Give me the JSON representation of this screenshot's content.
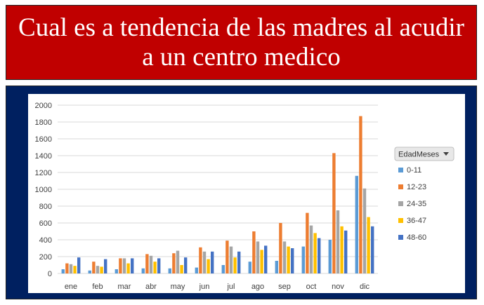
{
  "banner": {
    "title": "Cual es a tendencia de las madres al acudir a un centro medico"
  },
  "colors": {
    "banner_bg": "#c00000",
    "frame_bg": "#002060",
    "gridline": "#d9d9d9"
  },
  "chart_data": {
    "type": "bar",
    "title": "",
    "xlabel": "",
    "ylabel": "",
    "ylim": [
      0,
      2000
    ],
    "yticks": [
      0,
      200,
      400,
      600,
      800,
      1000,
      1200,
      1400,
      1600,
      1800,
      2000
    ],
    "grid": true,
    "legend_title": "EdadMeses",
    "legend_position": "right",
    "categories": [
      "ene",
      "feb",
      "mar",
      "abr",
      "may",
      "jun",
      "jul",
      "ago",
      "sep",
      "oct",
      "nov",
      "dic"
    ],
    "series": [
      {
        "name": "0-11",
        "color": "#5b9bd5",
        "values": [
          50,
          35,
          50,
          60,
          60,
          70,
          100,
          140,
          150,
          320,
          400,
          1160
        ]
      },
      {
        "name": "12-23",
        "color": "#ed7d31",
        "values": [
          120,
          140,
          180,
          230,
          240,
          310,
          390,
          500,
          600,
          720,
          1430,
          1870
        ]
      },
      {
        "name": "24-35",
        "color": "#a5a5a5",
        "values": [
          110,
          90,
          180,
          210,
          270,
          260,
          320,
          380,
          380,
          570,
          750,
          1010
        ]
      },
      {
        "name": "36-47",
        "color": "#ffc000",
        "values": [
          90,
          80,
          120,
          140,
          100,
          170,
          190,
          280,
          320,
          480,
          560,
          670
        ]
      },
      {
        "name": "48-60",
        "color": "#4472c4",
        "values": [
          190,
          170,
          180,
          180,
          190,
          260,
          260,
          330,
          300,
          420,
          510,
          560
        ]
      }
    ]
  }
}
